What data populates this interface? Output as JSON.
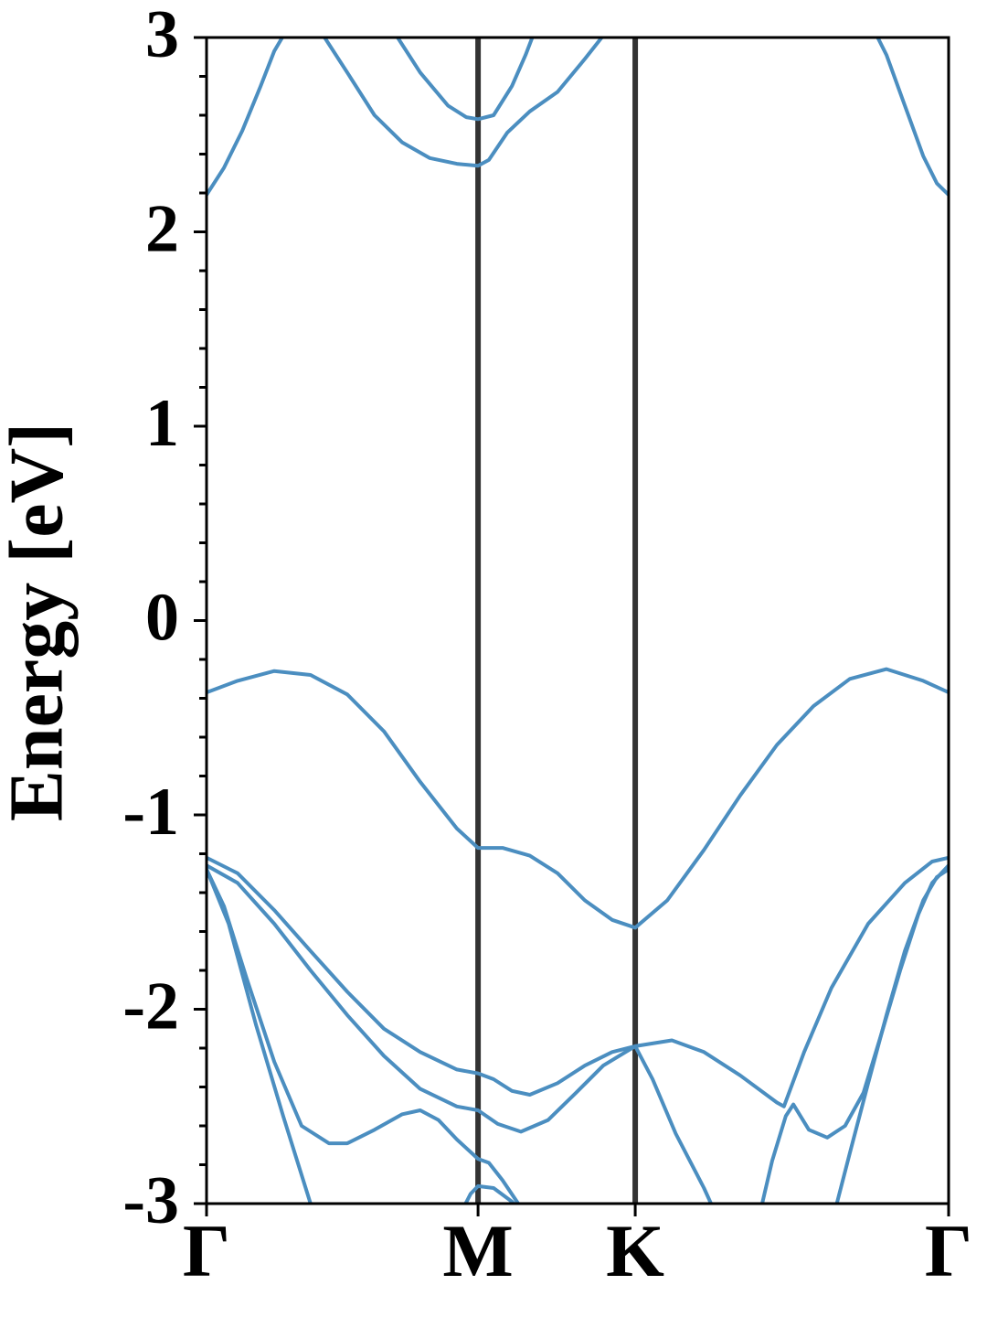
{
  "chart_data": {
    "type": "line",
    "ylabel": "Energy [eV]",
    "color": "#4b8ec0",
    "xlim": [
      0,
      1.577
    ],
    "ylim": [
      -3,
      3
    ],
    "yticks": [
      -3,
      -2,
      -1,
      0,
      1,
      2,
      3
    ],
    "xticks": [
      {
        "value": 0,
        "label": "Γ"
      },
      {
        "value": 0.577,
        "label": "M"
      },
      {
        "value": 0.911,
        "label": "K"
      },
      {
        "value": 1.577,
        "label": "Γ"
      }
    ],
    "series": [
      {
        "x": [
          0,
          0.066,
          0.144,
          0.221,
          0.299,
          0.377,
          0.454,
          0.532,
          0.577,
          0.629,
          0.687,
          0.746,
          0.804,
          0.862,
          0.911,
          0.979,
          1.057,
          1.134,
          1.212,
          1.29,
          1.367,
          1.445,
          1.523,
          1.577
        ],
        "values": [
          -0.37,
          -0.31,
          -0.26,
          -0.28,
          -0.38,
          -0.57,
          -0.83,
          -1.07,
          -1.17,
          -1.17,
          -1.21,
          -1.3,
          -1.44,
          -1.54,
          -1.58,
          -1.44,
          -1.18,
          -0.9,
          -0.64,
          -0.44,
          -0.3,
          -0.25,
          -0.31,
          -0.37
        ]
      },
      {
        "x": [
          0,
          0.037,
          0.076,
          0.115,
          0.144,
          0.173,
          0.202,
          0.251,
          0.299,
          0.357,
          0.416,
          0.474,
          0.532,
          0.577,
          0.6,
          0.639,
          0.687,
          0.746,
          0.804,
          0.843
        ],
        "values": [
          2.19,
          2.33,
          2.52,
          2.75,
          2.93,
          3.05,
          3.15,
          3.0,
          2.82,
          2.6,
          2.46,
          2.38,
          2.35,
          2.34,
          2.37,
          2.51,
          2.62,
          2.72,
          2.89,
          3.01
        ]
      },
      {
        "x": [
          0.377,
          0.406,
          0.454,
          0.513,
          0.552,
          0.577,
          0.61,
          0.649,
          0.678,
          0.697
        ],
        "values": [
          3.1,
          3.0,
          2.82,
          2.65,
          2.59,
          2.58,
          2.6,
          2.75,
          2.91,
          3.03
        ]
      },
      {
        "x": [
          1.416,
          1.445,
          1.484,
          1.523,
          1.552,
          1.577
        ],
        "values": [
          3.05,
          2.91,
          2.65,
          2.39,
          2.25,
          2.19
        ]
      },
      {
        "x": [
          0,
          0.066,
          0.144,
          0.221,
          0.299,
          0.377,
          0.454,
          0.532,
          0.577,
          0.61,
          0.649,
          0.687,
          0.746,
          0.804,
          0.862,
          0.911,
          0.989,
          1.057,
          1.134,
          1.212,
          1.227,
          1.27,
          1.328,
          1.406,
          1.484,
          1.542,
          1.577
        ],
        "values": [
          -1.22,
          -1.3,
          -1.49,
          -1.7,
          -1.91,
          -2.1,
          -2.22,
          -2.31,
          -2.33,
          -2.36,
          -2.42,
          -2.44,
          -2.38,
          -2.29,
          -2.22,
          -2.19,
          -2.16,
          -2.22,
          -2.34,
          -2.48,
          -2.5,
          -2.22,
          -1.89,
          -1.56,
          -1.35,
          -1.24,
          -1.22
        ]
      },
      {
        "x": [
          0,
          0.066,
          0.144,
          0.221,
          0.299,
          0.377,
          0.454,
          0.532,
          0.577,
          0.619,
          0.668,
          0.726,
          0.785,
          0.843,
          0.911,
          0.948,
          0.997,
          1.057,
          1.076
        ],
        "values": [
          -1.26,
          -1.35,
          -1.56,
          -1.8,
          -2.03,
          -2.24,
          -2.41,
          -2.5,
          -2.52,
          -2.59,
          -2.63,
          -2.57,
          -2.43,
          -2.29,
          -2.19,
          -2.36,
          -2.64,
          -2.92,
          -3.02
        ]
      },
      {
        "x": [
          0,
          0.037,
          0.085,
          0.144,
          0.202,
          0.26,
          0.299,
          0.357,
          0.416,
          0.454,
          0.493,
          0.532,
          0.577,
          0.6,
          0.629,
          0.668
        ],
        "values": [
          -1.28,
          -1.47,
          -1.84,
          -2.27,
          -2.6,
          -2.69,
          -2.69,
          -2.62,
          -2.54,
          -2.52,
          -2.57,
          -2.67,
          -2.77,
          -2.79,
          -2.88,
          -3.02
        ]
      },
      {
        "x": [
          0,
          0.047,
          0.105,
          0.163,
          0.221,
          0.231
        ],
        "values": [
          -1.28,
          -1.56,
          -2.08,
          -2.55,
          -3.0,
          -3.07
        ]
      },
      {
        "x": [
          0.542,
          0.561,
          0.577,
          0.61,
          0.649,
          0.668
        ],
        "values": [
          -3.04,
          -2.95,
          -2.91,
          -2.92,
          -2.99,
          -3.04
        ]
      },
      {
        "x": [
          1.177,
          1.202,
          1.231,
          1.247,
          1.28,
          1.319,
          1.357,
          1.396,
          1.435,
          1.474,
          1.513,
          1.542,
          1.577
        ],
        "values": [
          -3.04,
          -2.78,
          -2.55,
          -2.49,
          -2.62,
          -2.66,
          -2.6,
          -2.43,
          -2.12,
          -1.8,
          -1.51,
          -1.35,
          -1.26
        ]
      },
      {
        "x": [
          1.332,
          1.367,
          1.406,
          1.445,
          1.484,
          1.523,
          1.552,
          1.577
        ],
        "values": [
          -3.07,
          -2.74,
          -2.38,
          -2.03,
          -1.7,
          -1.44,
          -1.32,
          -1.28
        ]
      }
    ]
  }
}
